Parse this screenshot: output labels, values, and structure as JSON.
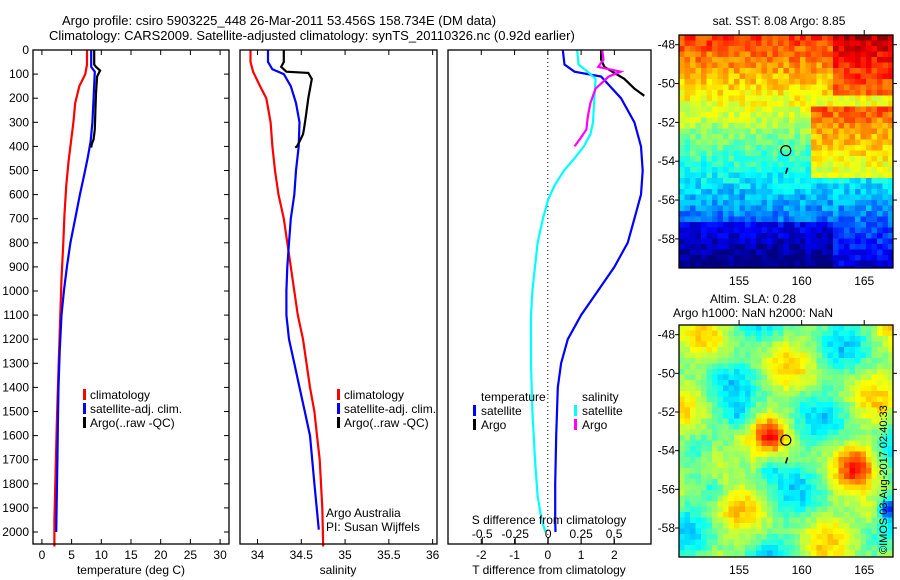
{
  "header": {
    "line1": "Argo profile: csiro 5903225_448 26-Mar-2011 53.456S 158.734E (DM data)",
    "line2": "Climatology: CARS2009. Satellite-adjusted climatology: synTS_20110326.nc (0.92d earlier)"
  },
  "credit": "©IMOS 03-Aug-2017 02:40:33",
  "colors": {
    "climatology": "#ff0000",
    "satellite": "#0000ff",
    "argo": "#000000",
    "sal_satellite": "#00ffff",
    "sal_argo": "#ff00ff"
  },
  "chart_data": [
    {
      "id": "temperature",
      "type": "line",
      "xlabel": "temperature (deg C)",
      "ylabel": "",
      "xlim": [
        -1.5,
        31.5
      ],
      "ylim": [
        2060,
        0
      ],
      "xticks": [
        0,
        5,
        10,
        15,
        20,
        25,
        30
      ],
      "yticks": [
        0,
        100,
        200,
        300,
        400,
        500,
        600,
        700,
        800,
        900,
        1000,
        1100,
        1200,
        1300,
        1400,
        1500,
        1600,
        1700,
        1800,
        1900,
        2000
      ],
      "legend": [
        "climatology",
        "satellite-adj. clim.",
        "Argo(..raw -QC)"
      ],
      "legend_position": "middle-left",
      "series": [
        {
          "name": "climatology",
          "color_key": "climatology",
          "x": [
            7.6,
            7.6,
            7.3,
            6.3,
            5.6,
            5.3,
            4.9,
            4.5,
            4.1,
            3.8,
            3.6,
            3.3,
            3.1,
            2.9,
            2.7,
            2.5,
            2.4,
            2.3,
            2.2,
            2.1,
            2.1
          ],
          "y": [
            0,
            60,
            100,
            150,
            220,
            300,
            380,
            460,
            560,
            680,
            800,
            950,
            1100,
            1250,
            1400,
            1550,
            1650,
            1750,
            1850,
            1950,
            2060
          ]
        },
        {
          "name": "satellite-adj. clim.",
          "color_key": "satellite",
          "x": [
            8.3,
            8.3,
            8.9,
            8.7,
            8.5,
            8.2,
            7.7,
            7.1,
            6.4,
            5.6,
            4.8,
            4.2,
            3.7,
            3.3,
            3.0,
            2.8,
            2.7,
            2.6,
            2.5,
            2.4
          ],
          "y": [
            0,
            70,
            90,
            200,
            300,
            380,
            450,
            520,
            600,
            700,
            800,
            900,
            1000,
            1100,
            1250,
            1400,
            1550,
            1700,
            1850,
            2000
          ]
        },
        {
          "name": "Argo(..raw -QC)",
          "color_key": "argo",
          "x": [
            8.8,
            8.8,
            9.1,
            9.8,
            9.3,
            9.1,
            9.0,
            8.9,
            8.7,
            8.4,
            8.3
          ],
          "y": [
            0,
            60,
            70,
            85,
            110,
            180,
            250,
            330,
            370,
            390,
            405
          ]
        }
      ]
    },
    {
      "id": "salinity",
      "type": "line",
      "xlabel": "salinity",
      "xlim": [
        33.8,
        36.05
      ],
      "ylim": [
        2060,
        0
      ],
      "xticks": [
        34,
        34.5,
        35,
        35.5,
        36
      ],
      "legend": [
        "climatology",
        "satellite-adj. clim.",
        "Argo(..raw -QC)"
      ],
      "legend_position": "bottom-right",
      "annotation": [
        "Argo Australia",
        "PI: Susan Wijffels"
      ],
      "series": [
        {
          "name": "climatology",
          "color_key": "climatology",
          "x": [
            33.92,
            33.92,
            33.95,
            34.03,
            34.1,
            34.15,
            34.17,
            34.2,
            34.24,
            34.3,
            34.34,
            34.38,
            34.42,
            34.46,
            34.52,
            34.56,
            34.6,
            34.65,
            34.68,
            34.71,
            34.74,
            34.75
          ],
          "y": [
            0,
            50,
            90,
            150,
            200,
            300,
            400,
            500,
            600,
            700,
            800,
            900,
            1000,
            1100,
            1200,
            1300,
            1400,
            1500,
            1600,
            1700,
            1900,
            2060
          ]
        },
        {
          "name": "satellite-adj. clim.",
          "color_key": "satellite",
          "x": [
            34.12,
            34.12,
            34.17,
            34.3,
            34.38,
            34.44,
            34.48,
            34.47,
            34.44,
            34.42,
            34.38,
            34.36,
            34.34,
            34.33,
            34.33,
            34.36,
            34.42,
            34.48,
            34.54,
            34.6,
            34.65,
            34.7
          ],
          "y": [
            0,
            50,
            80,
            100,
            150,
            220,
            300,
            400,
            500,
            600,
            700,
            800,
            900,
            1000,
            1100,
            1200,
            1300,
            1400,
            1500,
            1600,
            1800,
            1990
          ]
        },
        {
          "name": "Argo(..raw -QC)",
          "color_key": "argo",
          "x": [
            34.3,
            34.3,
            34.27,
            34.33,
            34.58,
            34.62,
            34.58,
            34.55,
            34.53,
            34.52,
            34.48,
            34.45,
            34.43
          ],
          "y": [
            0,
            50,
            70,
            90,
            95,
            120,
            200,
            280,
            330,
            350,
            380,
            400,
            405
          ]
        }
      ]
    },
    {
      "id": "difference",
      "type": "line",
      "xlabel": "T difference from climatology",
      "xlabel_secondary": "S difference from climatology",
      "xlim_T": [
        -3,
        3.1
      ],
      "xlim_S": [
        -0.76,
        0.78
      ],
      "ylim": [
        2060,
        0
      ],
      "xticks_T": [
        -2,
        -1,
        0,
        1,
        2
      ],
      "xticks_S": [
        -0.5,
        -0.25,
        0,
        0.25,
        0.5
      ],
      "xticklabels_S": [
        "-0.5",
        "-0.25",
        "0",
        "0.25",
        "0.5"
      ],
      "zero_line": "dotted",
      "legend": {
        "temperature_header": "temperature",
        "salinity_header": "salinity",
        "items": [
          "satellite",
          "Argo",
          "satellite",
          "Argo"
        ]
      },
      "series": [
        {
          "name": "temperature satellite",
          "axis": "T",
          "color_key": "satellite",
          "x": [
            0.45,
            0.5,
            0.8,
            1.6,
            2.2,
            2.6,
            2.8,
            2.85,
            2.8,
            2.6,
            2.4,
            2.0,
            1.5,
            1.0,
            0.6,
            0.4,
            0.3,
            0.25,
            0.22,
            0.22,
            0.23
          ],
          "y": [
            0,
            60,
            90,
            110,
            200,
            300,
            400,
            500,
            600,
            700,
            800,
            900,
            1000,
            1100,
            1200,
            1300,
            1400,
            1600,
            1800,
            1950,
            2000
          ]
        },
        {
          "name": "temperature Argo",
          "axis": "T",
          "color_key": "argo",
          "x": [
            1.6,
            1.6,
            1.7,
            2.0,
            2.3,
            2.6,
            2.9
          ],
          "y": [
            0,
            40,
            70,
            95,
            120,
            160,
            190
          ]
        },
        {
          "name": "salinity satellite",
          "axis": "S",
          "color_key": "sal_satellite",
          "x": [
            0.22,
            0.23,
            0.3,
            0.36,
            0.35,
            0.34,
            0.32,
            0.27,
            0.2,
            0.12,
            0.05,
            0.0,
            -0.04,
            -0.08,
            -0.1,
            -0.12,
            -0.13,
            -0.13,
            -0.12,
            -0.1,
            -0.08,
            -0.05,
            -0.02
          ],
          "y": [
            0,
            60,
            90,
            120,
            200,
            300,
            350,
            400,
            450,
            500,
            560,
            620,
            700,
            800,
            900,
            1000,
            1100,
            1300,
            1500,
            1700,
            1850,
            1950,
            2000
          ]
        },
        {
          "name": "salinity Argo",
          "axis": "S",
          "color_key": "sal_argo",
          "x": [
            0.41,
            0.42,
            0.38,
            0.55,
            0.46,
            0.36,
            0.32,
            0.3,
            0.29,
            0.24,
            0.2
          ],
          "y": [
            0,
            40,
            70,
            90,
            110,
            160,
            220,
            280,
            330,
            370,
            400
          ]
        }
      ]
    },
    {
      "id": "sst-map",
      "type": "heatmap",
      "title": "sat. SST: 8.08 Argo: 8.85",
      "xticks": [
        155,
        160,
        165
      ],
      "yticks": [
        -48,
        -50,
        -52,
        -54,
        -56,
        -58
      ],
      "xlim": [
        150.2,
        167.3
      ],
      "ylim": [
        -59.5,
        -47.5
      ],
      "marker": {
        "lon": 158.734,
        "lat": -53.456,
        "shape": "circle"
      }
    },
    {
      "id": "sla-map",
      "type": "heatmap",
      "title": "Altim. SLA: 0.28",
      "subtitle": "Argo h1000: NaN h2000: NaN",
      "xticks": [
        155,
        160,
        165
      ],
      "yticks": [
        -48,
        -50,
        -52,
        -54,
        -56,
        -58
      ],
      "xlim": [
        150.2,
        167.3
      ],
      "ylim": [
        -59.5,
        -47.5
      ],
      "marker": {
        "lon": 158.734,
        "lat": -53.456,
        "shape": "circle"
      }
    }
  ]
}
